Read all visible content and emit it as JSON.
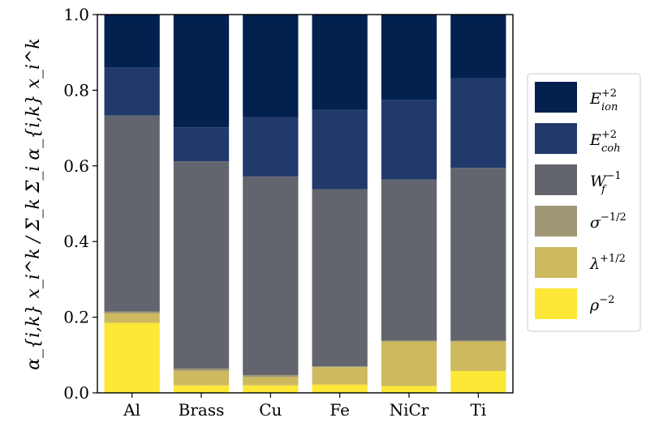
{
  "chart_data": {
    "type": "bar",
    "stacked": true,
    "categories": [
      "Al",
      "Brass",
      "Cu",
      "Fe",
      "NiCr",
      "Ti"
    ],
    "ylabel": "α_{i,k} x_i^k / Σ_k Σ_i α_{i,k} x_i^k",
    "ylim": [
      0,
      1.0
    ],
    "yticks": [
      "0.0",
      "0.2",
      "0.4",
      "0.6",
      "0.8",
      "1.0"
    ],
    "legend_position": "right",
    "series": [
      {
        "name": "ρ^-2",
        "label_base": "ρ",
        "label_sup": "−2",
        "label_sub": "",
        "color": "#fde737",
        "values": [
          0.185,
          0.02,
          0.02,
          0.022,
          0.018,
          0.058
        ]
      },
      {
        "name": "λ^+1/2",
        "label_base": "λ",
        "label_sup": "+1/2",
        "label_sub": "",
        "color": "#cdb95e",
        "values": [
          0.025,
          0.038,
          0.022,
          0.046,
          0.118,
          0.078
        ]
      },
      {
        "name": "σ^-1/2",
        "label_base": "σ",
        "label_sup": "−1/2",
        "label_sub": "",
        "color": "#a09775",
        "values": [
          0.005,
          0.006,
          0.005,
          0.002,
          0.002,
          0.002
        ]
      },
      {
        "name": "W_f^-1",
        "label_base": "W",
        "label_sup": "−1",
        "label_sub": "f",
        "color": "#63656e",
        "values": [
          0.518,
          0.548,
          0.525,
          0.468,
          0.426,
          0.457
        ]
      },
      {
        "name": "E_coh^+2",
        "label_base": "E",
        "label_sup": "+2",
        "label_sub": "coh",
        "color": "#223a6b",
        "values": [
          0.127,
          0.09,
          0.157,
          0.21,
          0.211,
          0.238
        ]
      },
      {
        "name": "E_ion^+2",
        "label_base": "E",
        "label_sup": "+2",
        "label_sub": "ion",
        "color": "#02214f",
        "values": [
          0.14,
          0.298,
          0.271,
          0.252,
          0.225,
          0.167
        ]
      }
    ]
  }
}
